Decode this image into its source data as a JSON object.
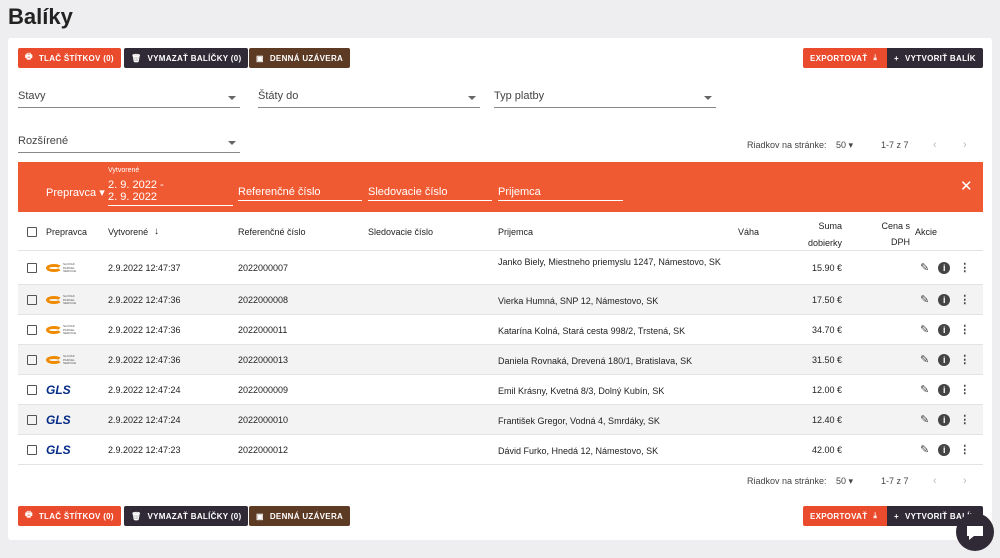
{
  "header": {
    "title": "Balíky"
  },
  "toolbar": {
    "print": "TLAČ ŠTÍTKOV (0)",
    "delete": "VYMAZAŤ BALÍČKY (0)",
    "daily": "DENNÁ UZÁVERA",
    "export": "EXPORTOVAŤ",
    "create": "VYTVORIŤ BALÍK"
  },
  "filters": {
    "states": "Stavy",
    "countries": "Štáty do",
    "payment": "Typ platby",
    "advanced": "Rozšírené"
  },
  "pagination": {
    "rows_label": "Riadkov na stránke:",
    "rows": "50",
    "range": "1-7 z 7"
  },
  "search": {
    "carrier": "Prepravca",
    "created_label": "Vytvorené",
    "date_from": "2. 9. 2022 -",
    "date_to": "2. 9. 2022",
    "reference": "Referenčné číslo",
    "tracking": "Sledovacie číslo",
    "recipient": "Prijemca"
  },
  "table": {
    "columns": [
      "Prepravca",
      "Vytvorené",
      "Referenčné číslo",
      "Sledovacie číslo",
      "Prijemca",
      "Váha",
      "Suma dobierky",
      "Cena s DPH",
      "Akcie"
    ],
    "rows": [
      [
        "SLOVAK PARCEL SERVICE",
        "2.9.2022 12:47:37",
        "2022000007",
        "Janko Biely, Miestneho priemyslu 1247, Námestovo, SK",
        "15.90 €"
      ],
      [
        "SLOVAK PARCEL SERVICE",
        "2.9.2022 12:47:36",
        "2022000008",
        "Vierka Humná, SNP 12, Námestovo, SK",
        "17.50 €"
      ],
      [
        "SLOVAK PARCEL SERVICE",
        "2.9.2022 12:47:36",
        "2022000011",
        "Katarína Kolná, Stará cesta 998/2, Trstená, SK",
        "34.70 €"
      ],
      [
        "SLOVAK PARCEL SERVICE",
        "2.9.2022 12:47:36",
        "2022000013",
        "Daniela Rovnaká, Drevená 180/1, Bratislava, SK",
        "31.50 €"
      ],
      [
        "GLS",
        "2.9.2022 12:47:24",
        "2022000009",
        "Emil Krásny, Kvetná 8/3, Dolný Kubín, SK",
        "12.00 €"
      ],
      [
        "GLS",
        "2.9.2022 12:47:24",
        "2022000010",
        "František Gregor, Vodná 4, Smrdáky, SK",
        "12.40 €"
      ],
      [
        "GLS",
        "2.9.2022 12:47:23",
        "2022000012",
        "Dávid Furko, Hnedá 12, Námestovo, SK",
        "42.00 €"
      ]
    ]
  }
}
